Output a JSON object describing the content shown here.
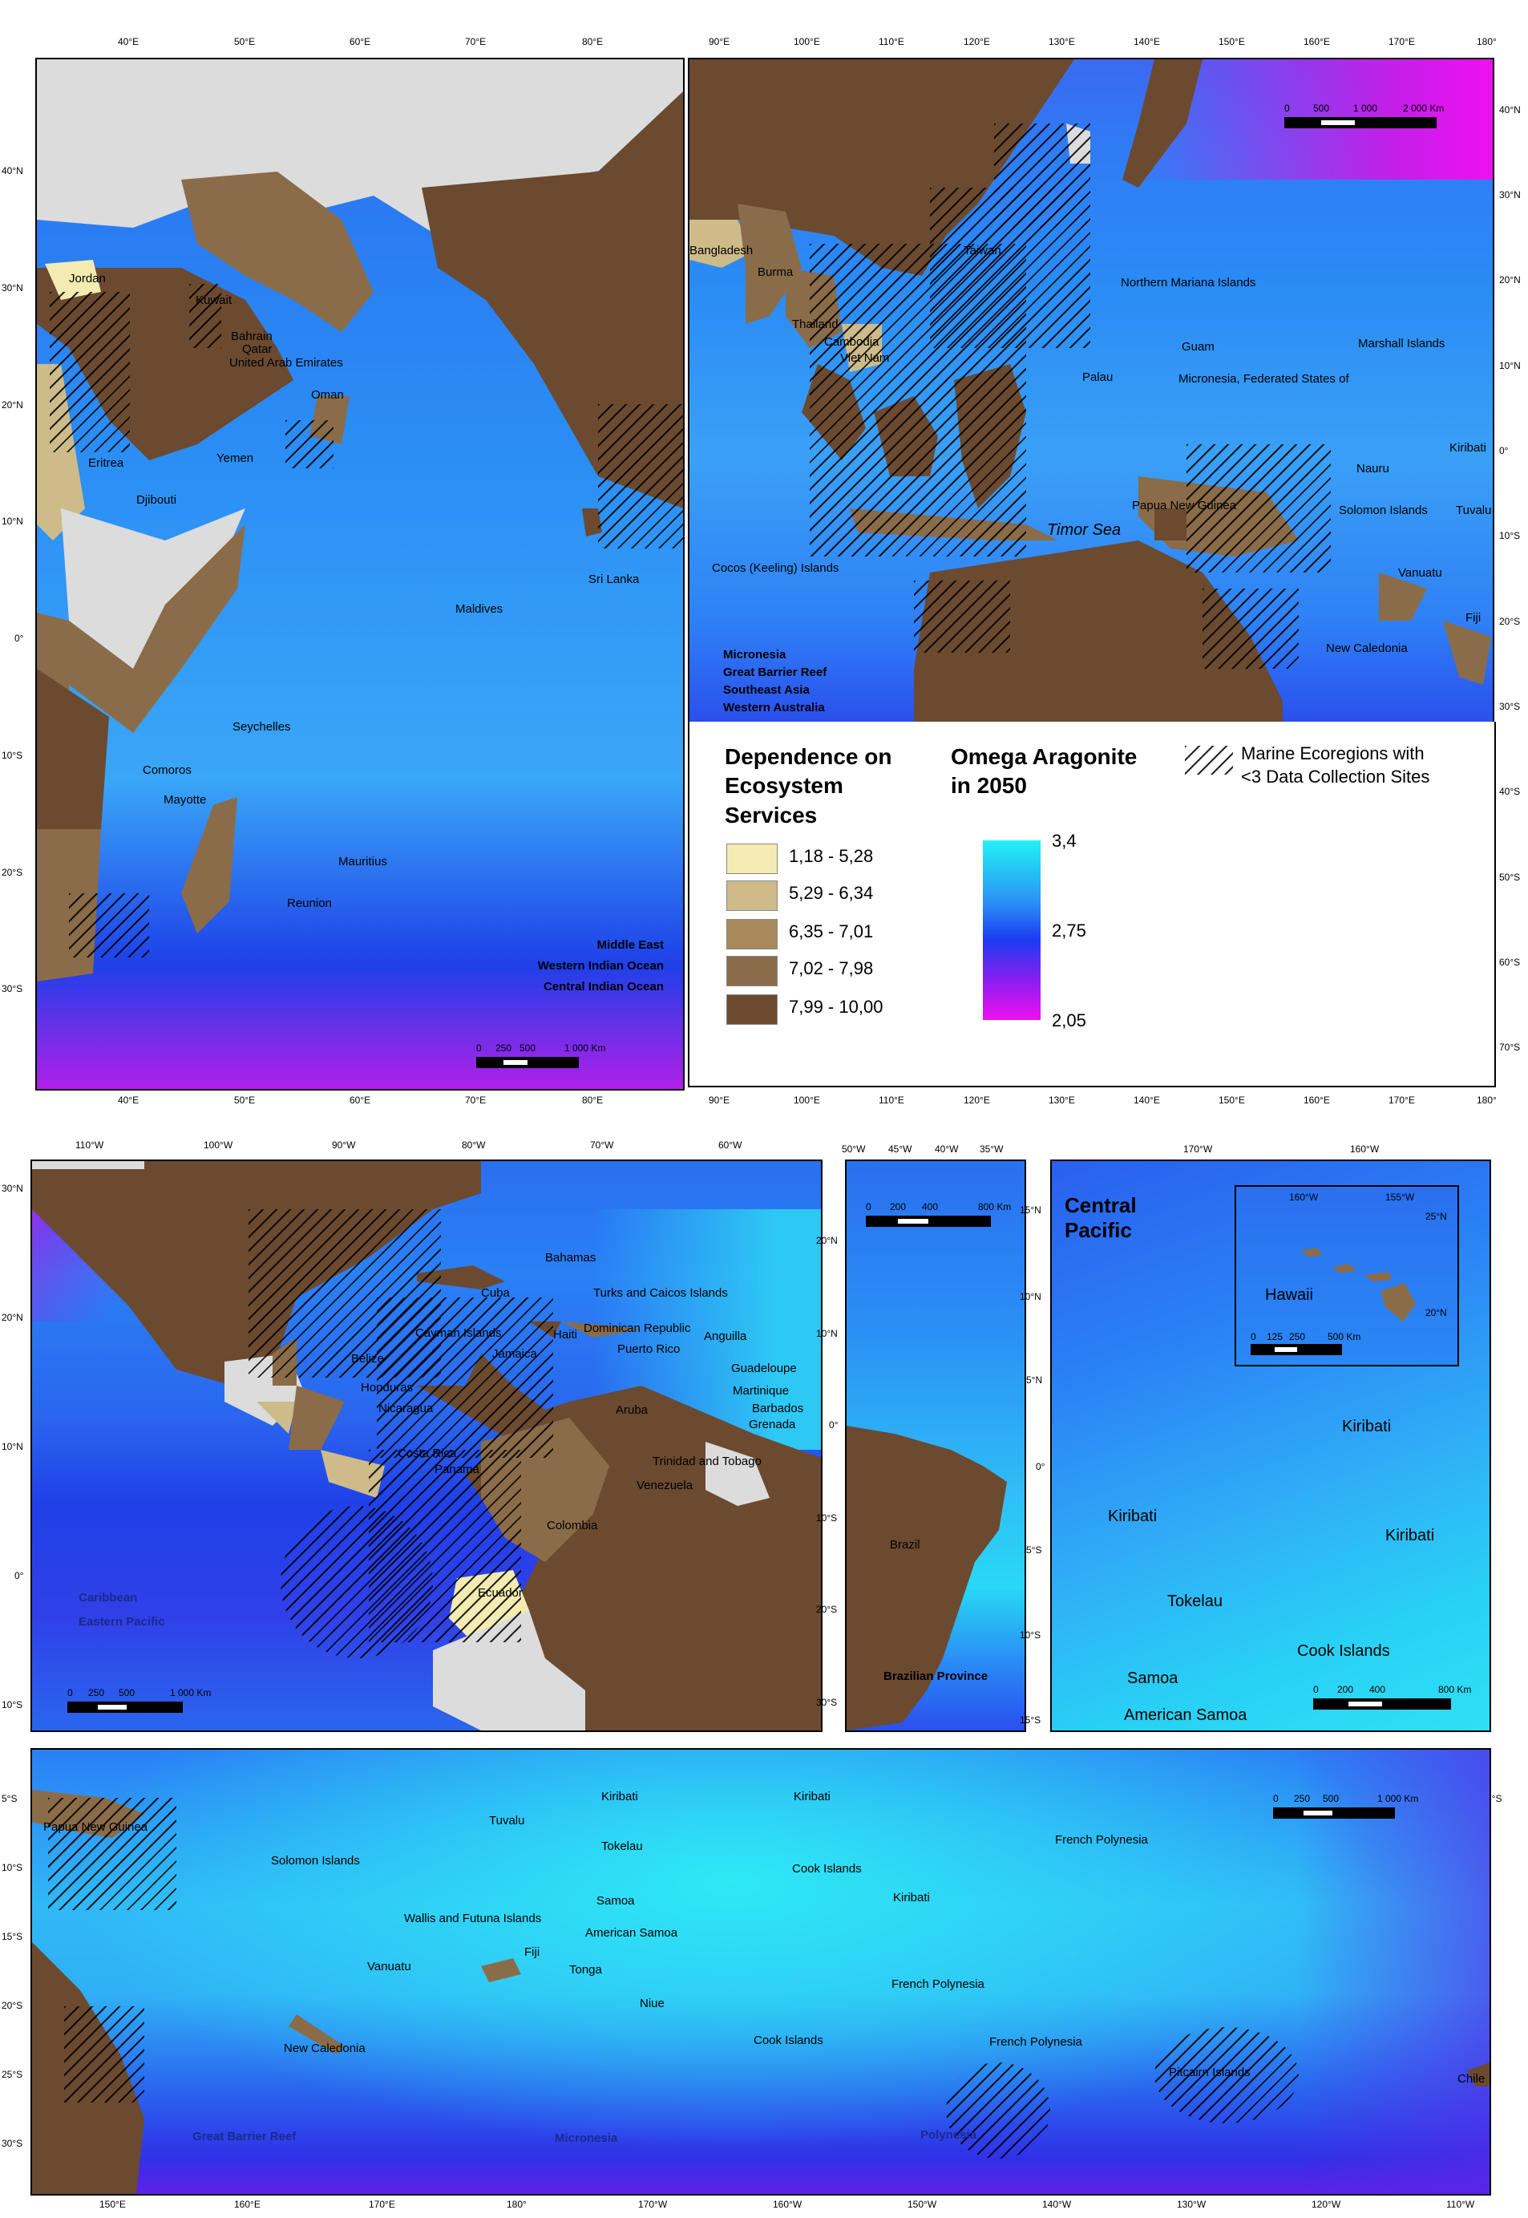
{
  "colors": {
    "dep_1": "#f3ebb1",
    "dep_2": "#cdbb8a",
    "dep_3": "#a8895c",
    "dep_4": "#8b6c49",
    "dep_5": "#6b4a30",
    "no_data_land": "#dcdcdc"
  },
  "legend": {
    "dependence_title": "Dependence on Ecosystem Services",
    "dependence_title_l1": "Dependence on",
    "dependence_title_l2": "Ecosystem",
    "dependence_title_l3": "Services",
    "classes": [
      "1,18 - 5,28",
      "5,29 - 6,34",
      "6,35 - 7,01",
      "7,02 - 7,98",
      "7,99 - 10,00"
    ],
    "omega_title_l1": "Omega Aragonite",
    "omega_title_l2": "in 2050",
    "omega_max": "3,4",
    "omega_mid": "2,75",
    "omega_min": "2,05",
    "hatch_label_l1": "Marine Ecoregions with",
    "hatch_label_l2": "<3 Data Collection Sites"
  },
  "panel_indian": {
    "lon_ticks": [
      "40°E",
      "50°E",
      "60°E",
      "70°E",
      "80°E"
    ],
    "lat_ticks": [
      "40°N",
      "30°N",
      "20°N",
      "10°N",
      "0°",
      "10°S",
      "20°S",
      "30°S"
    ],
    "labels": [
      "Jordan",
      "Kuwait",
      "Bahrain",
      "Qatar",
      "United Arab Emirates",
      "Oman",
      "Yemen",
      "Eritrea",
      "Djibouti",
      "Sri Lanka",
      "Maldives",
      "Seychelles",
      "Comoros",
      "Mayotte",
      "Mauritius",
      "Reunion"
    ],
    "regions": [
      "Middle East",
      "Western Indian Ocean",
      "Central Indian Ocean"
    ],
    "scale": [
      "0",
      "250",
      "500",
      "1 000 Km"
    ]
  },
  "panel_asia": {
    "lon_ticks": [
      "90°E",
      "100°E",
      "110°E",
      "120°E",
      "130°E",
      "140°E",
      "150°E",
      "160°E",
      "170°E",
      "180°"
    ],
    "lat_ticks": [
      "40°N",
      "30°N",
      "20°N",
      "10°N",
      "0°",
      "10°S",
      "20°S",
      "30°S",
      "40°S",
      "50°S",
      "60°S",
      "70°S"
    ],
    "labels": [
      "Bangladesh",
      "Burma",
      "Taiwan",
      "Northern Mariana Islands",
      "Thailand",
      "Cambodia",
      "Viet Nam",
      "Guam",
      "Marshall Islands",
      "Palau",
      "Micronesia, Federated States of",
      "Kiribati",
      "Nauru",
      "Papua New Guinea",
      "Solomon Islands",
      "Tuvalu",
      "Timor Sea",
      "Cocos (Keeling) Islands",
      "Vanuatu",
      "Fiji",
      "New Caledonia"
    ],
    "regions": [
      "Micronesia",
      "Great Barrier Reef",
      "Southeast Asia",
      "Western Australia"
    ],
    "scale": [
      "0",
      "500",
      "1 000",
      "2 000 Km"
    ]
  },
  "panel_caribbean": {
    "lon_ticks": [
      "110°W",
      "100°W",
      "90°W",
      "80°W",
      "70°W",
      "60°W"
    ],
    "lat_ticks": [
      "30°N",
      "20°N",
      "10°N",
      "0°",
      "10°S"
    ],
    "labels": [
      "Bahamas",
      "Cuba",
      "Turks and Caicos Islands",
      "Cayman Islands",
      "Haiti",
      "Dominican Republic",
      "Anguilla",
      "Belize",
      "Jamaica",
      "Puerto Rico",
      "Guadeloupe",
      "Honduras",
      "Martinique",
      "Nicaragua",
      "Aruba",
      "Barbados",
      "Grenada",
      "Costa Rica",
      "Trinidad and Tobago",
      "Panama",
      "Venezuela",
      "Colombia",
      "Ecuador"
    ],
    "regions": [
      "Caribbean",
      "Eastern Pacific"
    ],
    "scale": [
      "0",
      "250",
      "500",
      "1 000 Km"
    ]
  },
  "panel_brazil": {
    "lon_ticks": [
      "50°W",
      "45°W",
      "40°W",
      "35°W"
    ],
    "lat_ticks": [
      "20°N",
      "10°N",
      "0°",
      "10°S",
      "20°S",
      "30°S"
    ],
    "labels": [
      "Brazil"
    ],
    "regions": [
      "Brazilian Province"
    ],
    "scale": [
      "0",
      "200",
      "400",
      "800 Km"
    ]
  },
  "panel_central": {
    "lon_ticks": [
      "170°W",
      "160°W"
    ],
    "lat_ticks": [
      "15°N",
      "10°N",
      "5°N",
      "0°",
      "5°S",
      "10°S",
      "15°S"
    ],
    "title": "Central Pacific",
    "title_l1": "Central",
    "title_l2": "Pacific",
    "labels": [
      "Kiribati",
      "Kiribati",
      "Kiribati",
      "Tokelau",
      "Cook Islands",
      "Samoa",
      "American Samoa"
    ],
    "scale": [
      "0",
      "200",
      "400",
      "800 Km"
    ],
    "inset": {
      "lon_ticks": [
        "160°W",
        "155°W"
      ],
      "lat_ticks": [
        "25°N",
        "20°N"
      ],
      "label": "Hawaii",
      "scale": [
        "0",
        "125",
        "250",
        "500 Km"
      ]
    }
  },
  "panel_pacific": {
    "lon_ticks": [
      "150°E",
      "160°E",
      "170°E",
      "180°",
      "170°W",
      "160°W",
      "150°W",
      "140°W",
      "130°W",
      "120°W",
      "110°W"
    ],
    "lat_ticks": [
      "5°S",
      "10°S",
      "15°S",
      "20°S",
      "25°S",
      "30°S"
    ],
    "labels": [
      "Kiribati",
      "Kiribati",
      "Tuvalu",
      "Papua New Guinea",
      "Tokelau",
      "French Polynesia",
      "Solomon Islands",
      "Cook Islands",
      "Samoa",
      "Kiribati",
      "Wallis and Futuna Islands",
      "American Samoa",
      "Fiji",
      "Vanuatu",
      "Tonga",
      "French Polynesia",
      "Niue",
      "Cook Islands",
      "French Polynesia",
      "New Caledonia",
      "Pitcairn Islands",
      "Chile"
    ],
    "regions": [
      "Great Barrier Reef",
      "Micronesia",
      "Polynesia"
    ],
    "scale": [
      "0",
      "250",
      "500",
      "1 000 Km"
    ]
  }
}
